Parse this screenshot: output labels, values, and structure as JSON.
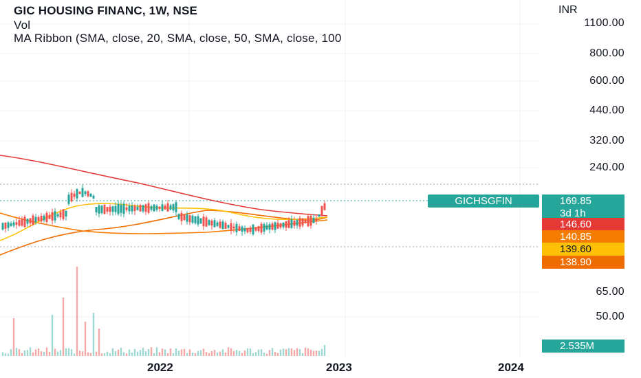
{
  "legend": {
    "title": "GIC HOUSING FINANC, 1W, NSE",
    "volume": "Vol",
    "ma_ribbon": "MA Ribbon (SMA, close, 20, SMA, close, 50, SMA, close, 100"
  },
  "price_axis": {
    "currency": "INR",
    "ticks": [
      "1100.00",
      "800.00",
      "600.00",
      "440.00",
      "320.00",
      "240.00",
      "65.00",
      "50.00"
    ]
  },
  "time_axis": {
    "ticks": [
      "2022",
      "2023",
      "2024"
    ]
  },
  "ticker_badge": "GICHSGFIN",
  "price_tags": {
    "last_price": "169.85",
    "countdown": "3d 1h",
    "ma_a": "146.60",
    "ma_b": "140.85",
    "ma_c": "139.60",
    "ma_d": "138.90",
    "volume": "2.535M"
  },
  "colors": {
    "up": "#26a69a",
    "down": "#ef5350",
    "ma_red": "#e53935",
    "ma_orange": "#f57c00",
    "ma_yellow": "#ffc107",
    "ma_dark_orange": "#ef6c00"
  }
}
